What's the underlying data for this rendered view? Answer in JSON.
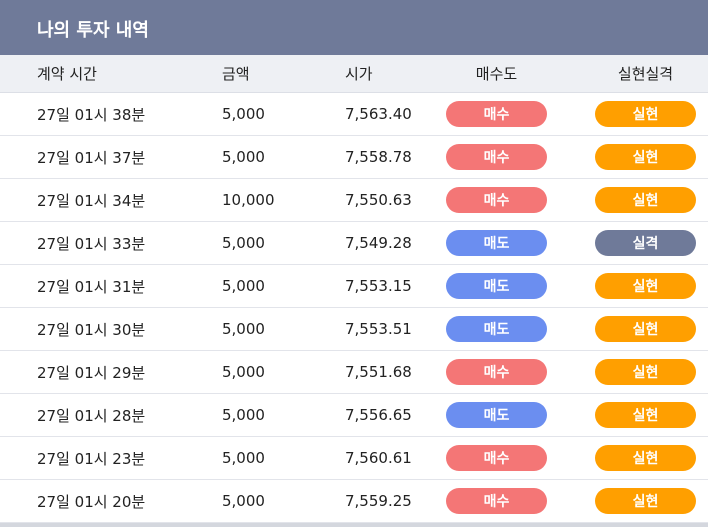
{
  "header": {
    "title": "나의 투자 내역"
  },
  "table": {
    "columns": [
      "계약 시간",
      "금액",
      "시가",
      "매수도",
      "실현실격"
    ],
    "rows": [
      [
        "27일 01시 38분",
        "5,000",
        "7,563.40",
        {
          "label": "매수",
          "color": "#f47676"
        },
        {
          "label": "실현",
          "color": "#ff9f00"
        }
      ],
      [
        "27일 01시 37분",
        "5,000",
        "7,558.78",
        {
          "label": "매수",
          "color": "#f47676"
        },
        {
          "label": "실현",
          "color": "#ff9f00"
        }
      ],
      [
        "27일 01시 34분",
        "10,000",
        "7,550.63",
        {
          "label": "매수",
          "color": "#f47676"
        },
        {
          "label": "실현",
          "color": "#ff9f00"
        }
      ],
      [
        "27일 01시 33분",
        "5,000",
        "7,549.28",
        {
          "label": "매도",
          "color": "#6b8ef0"
        },
        {
          "label": "실격",
          "color": "#6f7a99"
        }
      ],
      [
        "27일 01시 31분",
        "5,000",
        "7,553.15",
        {
          "label": "매도",
          "color": "#6b8ef0"
        },
        {
          "label": "실현",
          "color": "#ff9f00"
        }
      ],
      [
        "27일 01시 30분",
        "5,000",
        "7,553.51",
        {
          "label": "매도",
          "color": "#6b8ef0"
        },
        {
          "label": "실현",
          "color": "#ff9f00"
        }
      ],
      [
        "27일 01시 29분",
        "5,000",
        "7,551.68",
        {
          "label": "매수",
          "color": "#f47676"
        },
        {
          "label": "실현",
          "color": "#ff9f00"
        }
      ],
      [
        "27일 01시 28분",
        "5,000",
        "7,556.65",
        {
          "label": "매도",
          "color": "#6b8ef0"
        },
        {
          "label": "실현",
          "color": "#ff9f00"
        }
      ],
      [
        "27일 01시 23분",
        "5,000",
        "7,560.61",
        {
          "label": "매수",
          "color": "#f47676"
        },
        {
          "label": "실현",
          "color": "#ff9f00"
        }
      ],
      [
        "27일 01시 20분",
        "5,000",
        "7,559.25",
        {
          "label": "매수",
          "color": "#f47676"
        },
        {
          "label": "실현",
          "color": "#ff9f00"
        }
      ]
    ]
  }
}
